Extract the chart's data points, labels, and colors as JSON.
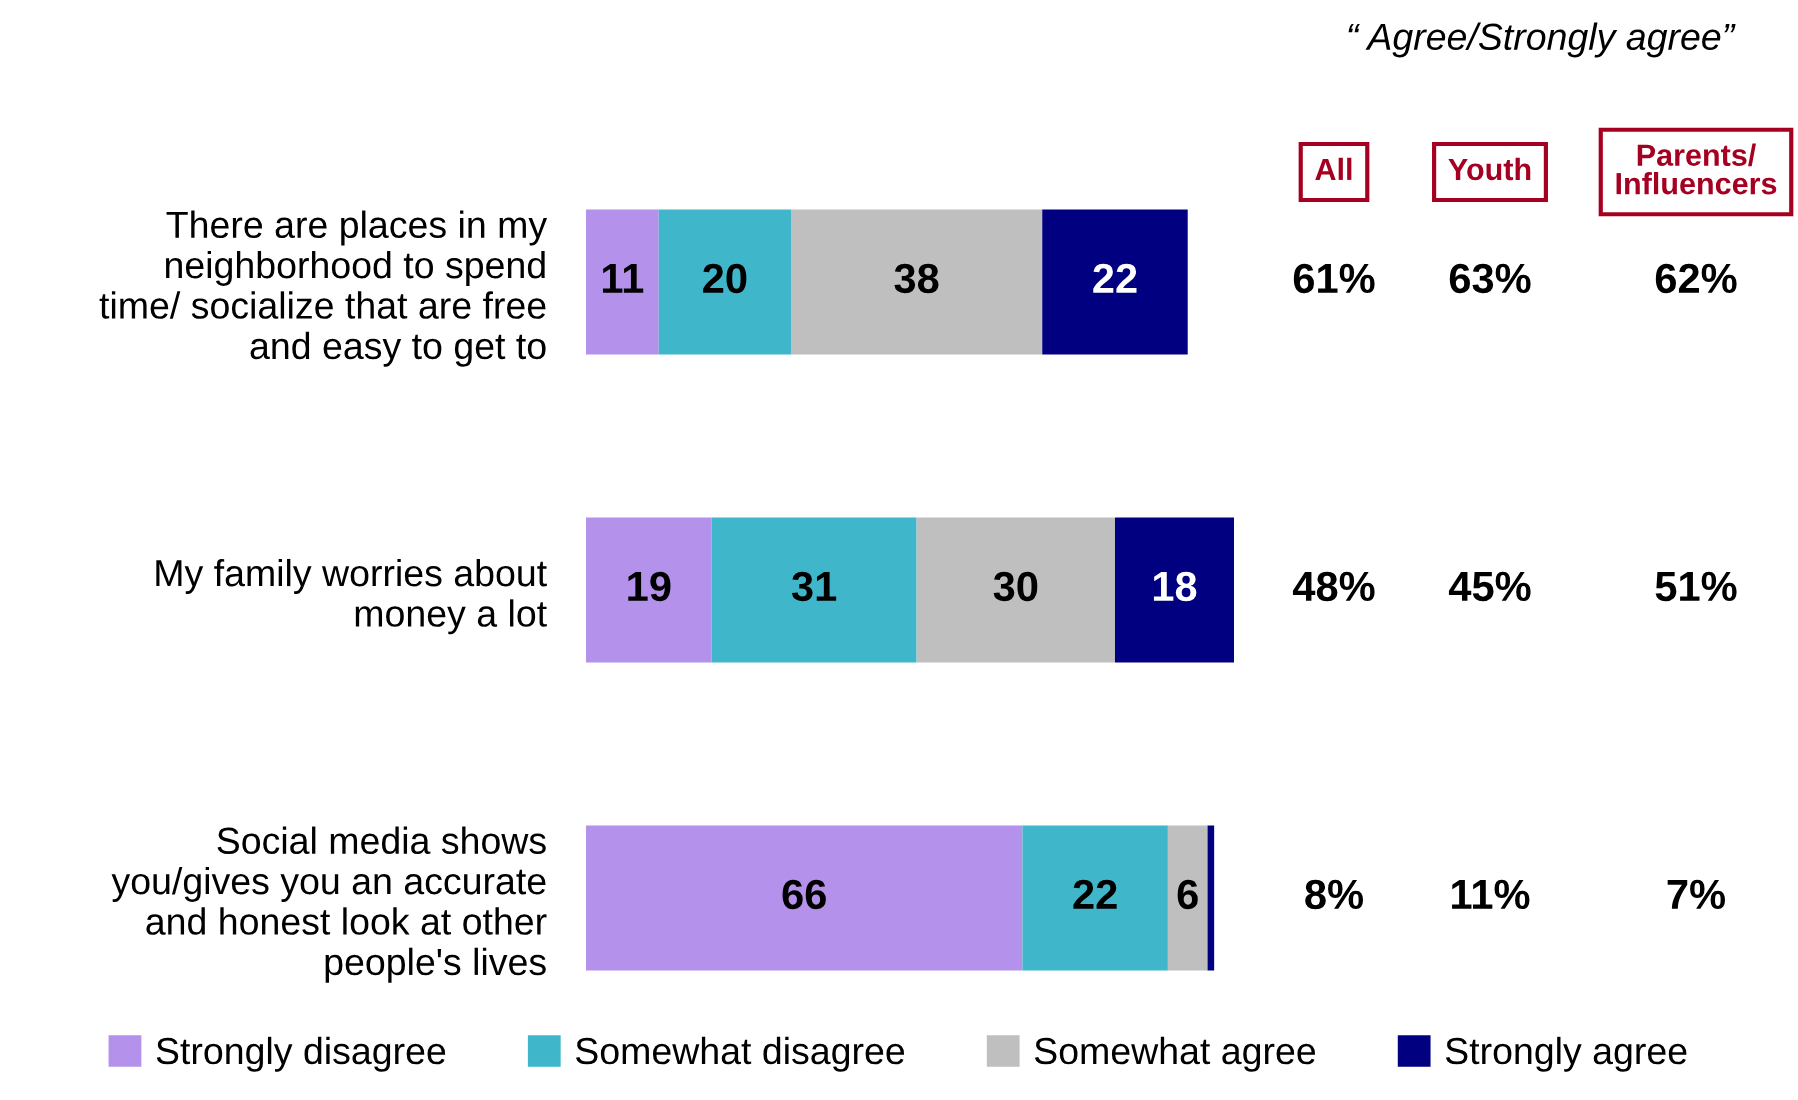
{
  "chart_data": {
    "type": "bar",
    "orientation": "horizontal",
    "stacked": true,
    "tick_labels": "y",
    "grid": false,
    "legend": "bottom",
    "categories": [
      "There are places in my\nneighborhood to spend\ntime/ socialize that are free\nand easy to get to",
      "My family worries about\nmoney a lot",
      "Social media shows\nyou/gives you an accurate\nand honest look at other\npeople's lives"
    ],
    "series": [
      {
        "name": "Strongly disagree",
        "color": "#b491eb",
        "values": [
          11,
          19,
          66
        ],
        "value_labels": [
          "11",
          "19",
          "66"
        ]
      },
      {
        "name": "Somewhat disagree",
        "color": "#3fb6c9",
        "values": [
          20,
          31,
          22
        ],
        "value_labels": [
          "20",
          "31",
          "22"
        ]
      },
      {
        "name": "Somewhat agree",
        "color": "#bfbfbf",
        "values": [
          38,
          30,
          6
        ],
        "value_labels": [
          "38",
          "30",
          "6"
        ]
      },
      {
        "name": "Strongly agree",
        "color": "#000080",
        "values": [
          22,
          18,
          1
        ],
        "value_labels": [
          "22",
          "18",
          null
        ]
      }
    ],
    "annotations": [
      "“ Agree/Strongly agree”",
      "All",
      "Youth",
      "Parents/\nInfluencers",
      "61%",
      "63%",
      "62%",
      "48%",
      "45%",
      "51%",
      "8%",
      "11%",
      "7%"
    ]
  }
}
